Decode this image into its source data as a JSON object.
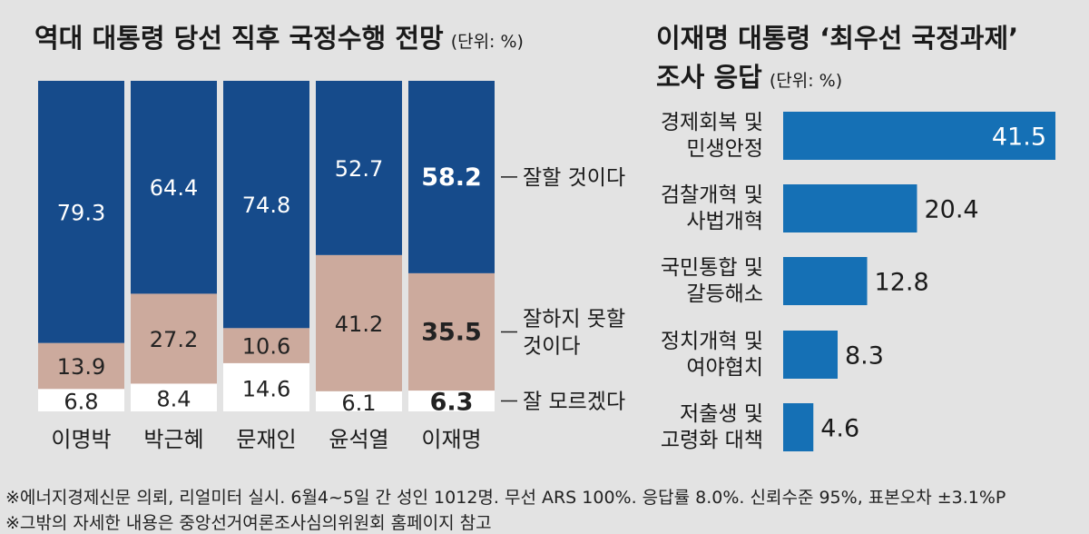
{
  "chart_data": [
    {
      "type": "bar",
      "stacked": true,
      "title": "역대 대통령 당선 직후 국정수행 전망",
      "unit": "(단위: %)",
      "categories": [
        "이명박",
        "박근혜",
        "문재인",
        "윤석열",
        "이재명"
      ],
      "series": [
        {
          "name": "잘 모르겠다",
          "values": [
            6.8,
            8.4,
            14.6,
            6.1,
            6.3
          ],
          "color": "#ffffff",
          "text_color": "#222222"
        },
        {
          "name": "잘하지 못할 것이다",
          "name_lines": [
            "잘하지 못할",
            "것이다"
          ],
          "values": [
            13.9,
            27.2,
            10.6,
            41.2,
            35.5
          ],
          "color": "#ccaa9d",
          "text_color": "#222222"
        },
        {
          "name": "잘할 것이다",
          "values": [
            79.3,
            64.4,
            74.8,
            52.7,
            58.2
          ],
          "color": "#164b8b",
          "text_color": "#ffffff"
        }
      ],
      "highlight_category": "이재명",
      "ylim": [
        0,
        100
      ],
      "grid": false,
      "legend": "right"
    },
    {
      "type": "bar",
      "orientation": "horizontal",
      "title_lines": [
        "이재명 대통령 ‘최우선 국정과제’",
        "조사 응답"
      ],
      "unit": "(단위: %)",
      "categories": [
        "경제회복 및 민생안정",
        "검찰개혁 및 사법개혁",
        "국민통합 및 갈등해소",
        "정치개혁 및 여야협치",
        "저출생 및 고령화 대책"
      ],
      "category_lines": [
        [
          "경제회복 및",
          "민생안정"
        ],
        [
          "검찰개혁 및",
          "사법개혁"
        ],
        [
          "국민통합 및",
          "갈등해소"
        ],
        [
          "정치개혁 및",
          "여야협치"
        ],
        [
          "저출생 및",
          "고령화 대책"
        ]
      ],
      "values": [
        41.5,
        20.4,
        12.8,
        8.3,
        4.6
      ],
      "xlim": [
        0,
        41.5
      ],
      "color": "#1570b5",
      "grid": false
    }
  ],
  "footnotes": [
    "※에너지경제신문 의뢰, 리얼미터 실시. 6월4~5일 간 성인 1012명. 무선 ARS 100%. 응답률 8.0%. 신뢰수준 95%, 표본오차 ±3.1%P",
    "※그밖의 자세한 내용은 중앙선거여론조사심의위원회 홈페이지 참고"
  ]
}
